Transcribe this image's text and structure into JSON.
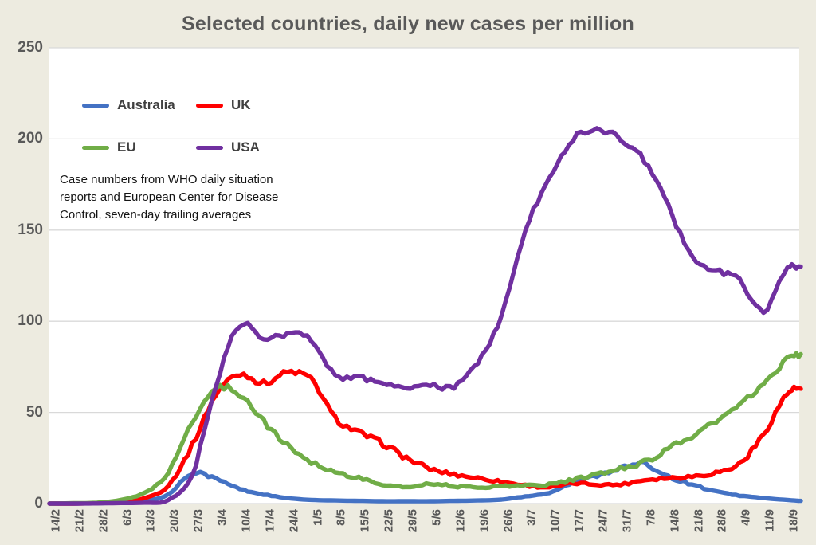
{
  "title": "Selected countries, daily new cases per million",
  "annotation": "Case numbers from WHO daily situation\nreports and European Center for Disease\nControl, seven-day trailing averages",
  "colors": {
    "australia": "#4472C4",
    "uk": "#FF0000",
    "eu": "#70AD47",
    "usa": "#7030A0",
    "text": "#595959",
    "grid": "#D9D9D9",
    "plot_bg": "#FFFFFF",
    "page_bg": "#EDEBE0"
  },
  "legend": {
    "items": [
      {
        "label": "Australia",
        "color": "#4472C4"
      },
      {
        "label": "UK",
        "color": "#FF0000"
      },
      {
        "label": "EU",
        "color": "#70AD47"
      },
      {
        "label": "USA",
        "color": "#7030A0"
      }
    ]
  },
  "y_axis": {
    "min": 0,
    "max": 250,
    "tick_step": 50,
    "ticks": [
      "0",
      "50",
      "100",
      "150",
      "200",
      "250"
    ]
  },
  "chart_data": {
    "type": "line",
    "title": "Selected countries, daily new cases per million",
    "xlabel": "",
    "ylabel": "",
    "ylim": [
      0,
      250
    ],
    "grid": "horizontal",
    "legend_position": "inside-top-left",
    "categories": [
      "14/2",
      "21/2",
      "28/2",
      "6/3",
      "13/3",
      "20/3",
      "27/3",
      "3/4",
      "10/4",
      "17/4",
      "24/4",
      "1/5",
      "8/5",
      "15/5",
      "22/5",
      "29/5",
      "5/6",
      "12/6",
      "19/6",
      "26/6",
      "3/7",
      "10/7",
      "17/7",
      "24/7",
      "31/7",
      "7/8",
      "14/8",
      "21/8",
      "28/8",
      "4/9",
      "11/9",
      "18/9"
    ],
    "series": [
      {
        "name": "Australia",
        "color": "#4472C4",
        "values": [
          0,
          0,
          0.2,
          0.5,
          1.5,
          5,
          17,
          13.5,
          8,
          5,
          3,
          2,
          1.7,
          1.5,
          1.3,
          1.3,
          1.3,
          1.5,
          1.7,
          2.2,
          4,
          6,
          11.5,
          15.5,
          19.5,
          21.5,
          15,
          10.5,
          6.6,
          4.4,
          3,
          2
        ],
        "end_value": 1.5
      },
      {
        "name": "UK",
        "color": "#FF0000",
        "values": [
          0,
          0,
          0.3,
          1,
          3,
          10,
          32,
          60,
          71,
          66,
          72,
          68,
          47,
          39,
          33,
          25,
          19,
          16,
          14,
          12,
          10,
          9,
          11,
          10.5,
          10.5,
          13,
          14,
          15,
          17,
          22,
          38,
          60
        ],
        "end_value": 63
      },
      {
        "name": "EU",
        "color": "#70AD47",
        "values": [
          0,
          0.2,
          0.5,
          2,
          6,
          17,
          45,
          63,
          60,
          45,
          32,
          23,
          17.5,
          14,
          10.5,
          9,
          11,
          9.5,
          9,
          9.5,
          10,
          10.5,
          13,
          16,
          19,
          23,
          30,
          37,
          45,
          54,
          65,
          79
        ],
        "end_value": 82
      },
      {
        "name": "USA",
        "color": "#7030A0",
        "values": [
          0,
          0,
          0.1,
          0.3,
          0.5,
          2,
          16,
          65,
          98,
          90,
          93,
          90,
          71,
          69,
          66.5,
          63.5,
          64.5,
          64,
          78,
          103,
          150,
          178,
          200,
          205,
          200,
          188,
          163,
          135,
          128,
          122,
          106,
          128
        ],
        "end_value": 130
      }
    ]
  }
}
